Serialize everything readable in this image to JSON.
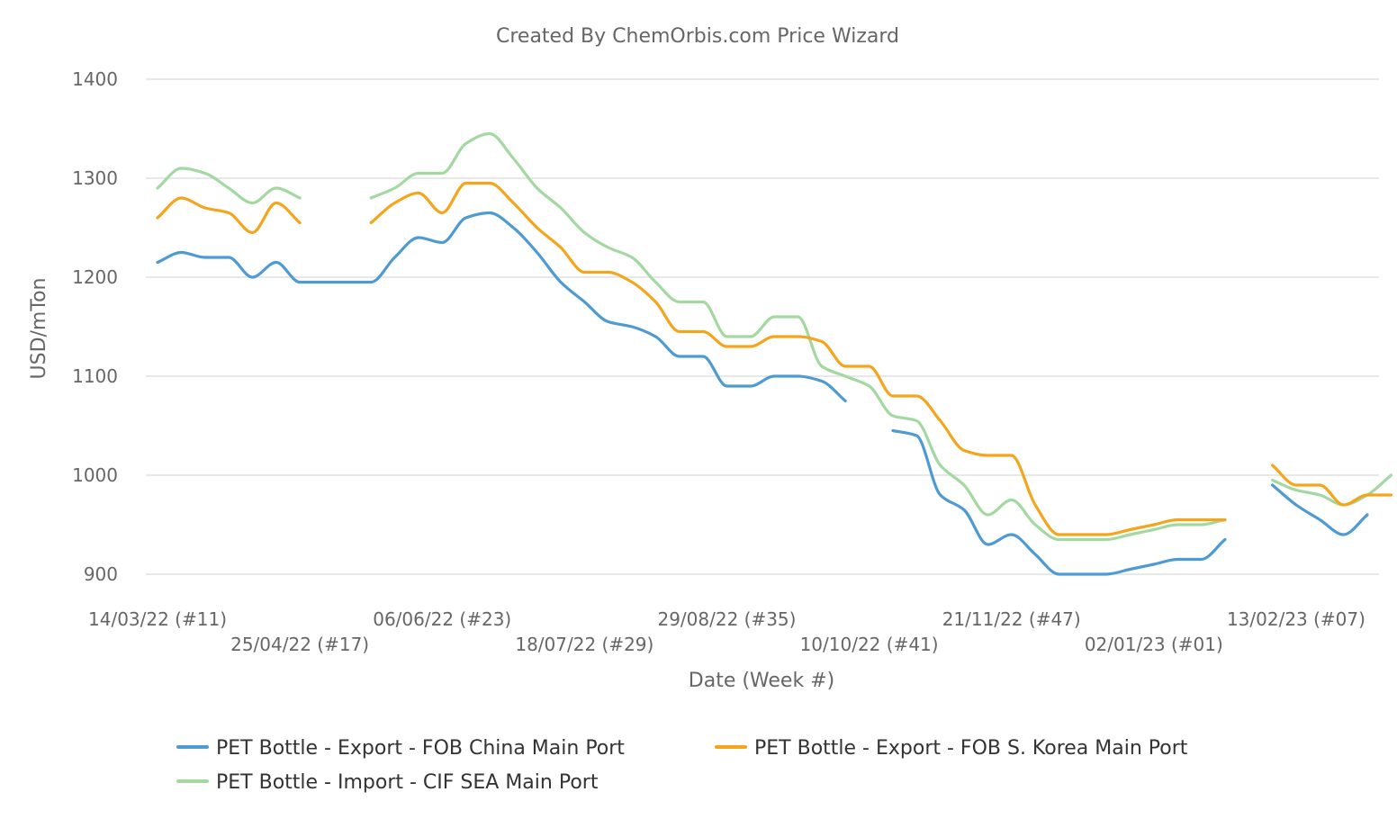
{
  "chart_data": {
    "type": "line",
    "title": "Created By ChemOrbis.com Price Wizard",
    "xlabel": "Date (Week #)",
    "ylabel": "USD/mTon",
    "ylim": [
      900,
      1400
    ],
    "yticks": [
      900,
      1000,
      1100,
      1200,
      1300,
      1400
    ],
    "grid": true,
    "legend_position": "bottom",
    "x_range": [
      "2022-03-14",
      "2023-03-06"
    ],
    "x_ticks": [
      {
        "date": "2022-03-14",
        "label": "14/03/22 (#11)"
      },
      {
        "date": "2022-04-25",
        "label": "25/04/22 (#17)"
      },
      {
        "date": "2022-06-06",
        "label": "06/06/22 (#23)"
      },
      {
        "date": "2022-07-18",
        "label": "18/07/22 (#29)"
      },
      {
        "date": "2022-08-29",
        "label": "29/08/22 (#35)"
      },
      {
        "date": "2022-10-10",
        "label": "10/10/22 (#41)"
      },
      {
        "date": "2022-11-21",
        "label": "21/11/22 (#47)"
      },
      {
        "date": "2023-01-02",
        "label": "02/01/23 (#01)"
      },
      {
        "date": "2023-02-13",
        "label": "13/02/23 (#07)"
      }
    ],
    "series": [
      {
        "name": "PET Bottle - Export - FOB China Main Port",
        "color": "#4e9ad2",
        "points": [
          {
            "x": "2022-03-14",
            "y": 1215
          },
          {
            "x": "2022-03-21",
            "y": 1225
          },
          {
            "x": "2022-03-28",
            "y": 1220
          },
          {
            "x": "2022-04-04",
            "y": 1220
          },
          {
            "x": "2022-04-11",
            "y": 1200
          },
          {
            "x": "2022-04-18",
            "y": 1215
          },
          {
            "x": "2022-04-25",
            "y": 1195
          },
          {
            "x": "2022-05-02",
            "y": 1195
          },
          {
            "x": "2022-05-09",
            "y": 1195
          },
          {
            "x": "2022-05-16",
            "y": 1195
          },
          {
            "x": "2022-05-23",
            "y": 1220
          },
          {
            "x": "2022-05-30",
            "y": 1240
          },
          {
            "x": "2022-06-06",
            "y": 1235
          },
          {
            "x": "2022-06-13",
            "y": 1260
          },
          {
            "x": "2022-06-20",
            "y": 1265
          },
          {
            "x": "2022-06-27",
            "y": 1250
          },
          {
            "x": "2022-07-04",
            "y": 1225
          },
          {
            "x": "2022-07-11",
            "y": 1195
          },
          {
            "x": "2022-07-18",
            "y": 1175
          },
          {
            "x": "2022-07-25",
            "y": 1155
          },
          {
            "x": "2022-08-01",
            "y": 1150
          },
          {
            "x": "2022-08-08",
            "y": 1140
          },
          {
            "x": "2022-08-15",
            "y": 1120
          },
          {
            "x": "2022-08-22",
            "y": 1120
          },
          {
            "x": "2022-08-29",
            "y": 1090
          },
          {
            "x": "2022-09-05",
            "y": 1090
          },
          {
            "x": "2022-09-12",
            "y": 1100
          },
          {
            "x": "2022-09-19",
            "y": 1100
          },
          {
            "x": "2022-09-26",
            "y": 1095
          },
          {
            "x": "2022-10-03",
            "y": 1075
          },
          {
            "x": "2022-10-10",
            "y": null
          },
          {
            "x": "2022-10-17",
            "y": 1045
          },
          {
            "x": "2022-10-24",
            "y": 1040
          },
          {
            "x": "2022-10-31",
            "y": 980
          },
          {
            "x": "2022-11-07",
            "y": 965
          },
          {
            "x": "2022-11-14",
            "y": 930
          },
          {
            "x": "2022-11-21",
            "y": 940
          },
          {
            "x": "2022-11-28",
            "y": 920
          },
          {
            "x": "2022-12-05",
            "y": 900
          },
          {
            "x": "2022-12-12",
            "y": 900
          },
          {
            "x": "2022-12-19",
            "y": 900
          },
          {
            "x": "2022-12-26",
            "y": 905
          },
          {
            "x": "2023-01-02",
            "y": 910
          },
          {
            "x": "2023-01-09",
            "y": 915
          },
          {
            "x": "2023-01-16",
            "y": 915
          },
          {
            "x": "2023-01-23",
            "y": 935
          },
          {
            "x": "2023-01-30",
            "y": null
          },
          {
            "x": "2023-02-06",
            "y": 990
          },
          {
            "x": "2023-02-13",
            "y": 970
          },
          {
            "x": "2023-02-20",
            "y": 955
          },
          {
            "x": "2023-02-27",
            "y": 940
          },
          {
            "x": "2023-03-06",
            "y": 960
          }
        ]
      },
      {
        "name": "PET Bottle - Export - FOB S. Korea Main Port",
        "color": "#f5a51c",
        "points": [
          {
            "x": "2022-03-14",
            "y": 1260
          },
          {
            "x": "2022-03-21",
            "y": 1280
          },
          {
            "x": "2022-03-28",
            "y": 1270
          },
          {
            "x": "2022-04-04",
            "y": 1265
          },
          {
            "x": "2022-04-11",
            "y": 1245
          },
          {
            "x": "2022-04-18",
            "y": 1275
          },
          {
            "x": "2022-04-25",
            "y": 1255
          },
          {
            "x": "2022-05-02",
            "y": null
          },
          {
            "x": "2022-05-16",
            "y": 1255
          },
          {
            "x": "2022-05-23",
            "y": 1275
          },
          {
            "x": "2022-05-30",
            "y": 1285
          },
          {
            "x": "2022-06-06",
            "y": 1265
          },
          {
            "x": "2022-06-13",
            "y": 1295
          },
          {
            "x": "2022-06-20",
            "y": 1295
          },
          {
            "x": "2022-06-27",
            "y": 1275
          },
          {
            "x": "2022-07-04",
            "y": 1250
          },
          {
            "x": "2022-07-11",
            "y": 1230
          },
          {
            "x": "2022-07-18",
            "y": 1205
          },
          {
            "x": "2022-07-25",
            "y": 1205
          },
          {
            "x": "2022-08-01",
            "y": 1195
          },
          {
            "x": "2022-08-08",
            "y": 1175
          },
          {
            "x": "2022-08-15",
            "y": 1145
          },
          {
            "x": "2022-08-22",
            "y": 1145
          },
          {
            "x": "2022-08-29",
            "y": 1130
          },
          {
            "x": "2022-09-05",
            "y": 1130
          },
          {
            "x": "2022-09-12",
            "y": 1140
          },
          {
            "x": "2022-09-19",
            "y": 1140
          },
          {
            "x": "2022-09-26",
            "y": 1135
          },
          {
            "x": "2022-10-03",
            "y": 1110
          },
          {
            "x": "2022-10-10",
            "y": 1110
          },
          {
            "x": "2022-10-17",
            "y": 1080
          },
          {
            "x": "2022-10-24",
            "y": 1080
          },
          {
            "x": "2022-10-31",
            "y": 1055
          },
          {
            "x": "2022-11-07",
            "y": 1025
          },
          {
            "x": "2022-11-14",
            "y": 1020
          },
          {
            "x": "2022-11-21",
            "y": 1020
          },
          {
            "x": "2022-11-28",
            "y": 970
          },
          {
            "x": "2022-12-05",
            "y": 940
          },
          {
            "x": "2022-12-12",
            "y": 940
          },
          {
            "x": "2022-12-19",
            "y": 940
          },
          {
            "x": "2022-12-26",
            "y": 945
          },
          {
            "x": "2023-01-02",
            "y": 950
          },
          {
            "x": "2023-01-09",
            "y": 955
          },
          {
            "x": "2023-01-16",
            "y": 955
          },
          {
            "x": "2023-01-23",
            "y": 955
          },
          {
            "x": "2023-01-30",
            "y": null
          },
          {
            "x": "2023-02-06",
            "y": 1010
          },
          {
            "x": "2023-02-13",
            "y": 990
          },
          {
            "x": "2023-02-20",
            "y": 990
          },
          {
            "x": "2023-02-27",
            "y": 970
          },
          {
            "x": "2023-03-06",
            "y": 980
          },
          {
            "x": "2023-03-13",
            "y": 980
          }
        ]
      },
      {
        "name": "PET Bottle - Import - CIF SEA Main Port",
        "color": "#a3d9a0",
        "points": [
          {
            "x": "2022-03-14",
            "y": 1290
          },
          {
            "x": "2022-03-21",
            "y": 1310
          },
          {
            "x": "2022-03-28",
            "y": 1305
          },
          {
            "x": "2022-04-04",
            "y": 1290
          },
          {
            "x": "2022-04-11",
            "y": 1275
          },
          {
            "x": "2022-04-18",
            "y": 1290
          },
          {
            "x": "2022-04-25",
            "y": 1280
          },
          {
            "x": "2022-05-02",
            "y": null
          },
          {
            "x": "2022-05-16",
            "y": 1280
          },
          {
            "x": "2022-05-23",
            "y": 1290
          },
          {
            "x": "2022-05-30",
            "y": 1305
          },
          {
            "x": "2022-06-06",
            "y": 1305
          },
          {
            "x": "2022-06-13",
            "y": 1335
          },
          {
            "x": "2022-06-20",
            "y": 1345
          },
          {
            "x": "2022-06-27",
            "y": 1320
          },
          {
            "x": "2022-07-04",
            "y": 1290
          },
          {
            "x": "2022-07-11",
            "y": 1270
          },
          {
            "x": "2022-07-18",
            "y": 1245
          },
          {
            "x": "2022-07-25",
            "y": 1230
          },
          {
            "x": "2022-08-01",
            "y": 1220
          },
          {
            "x": "2022-08-08",
            "y": 1195
          },
          {
            "x": "2022-08-15",
            "y": 1175
          },
          {
            "x": "2022-08-22",
            "y": 1175
          },
          {
            "x": "2022-08-29",
            "y": 1140
          },
          {
            "x": "2022-09-05",
            "y": 1140
          },
          {
            "x": "2022-09-12",
            "y": 1160
          },
          {
            "x": "2022-09-19",
            "y": 1160
          },
          {
            "x": "2022-09-26",
            "y": 1110
          },
          {
            "x": "2022-10-03",
            "y": 1100
          },
          {
            "x": "2022-10-10",
            "y": 1090
          },
          {
            "x": "2022-10-17",
            "y": 1060
          },
          {
            "x": "2022-10-24",
            "y": 1055
          },
          {
            "x": "2022-10-31",
            "y": 1010
          },
          {
            "x": "2022-11-07",
            "y": 990
          },
          {
            "x": "2022-11-14",
            "y": 960
          },
          {
            "x": "2022-11-21",
            "y": 975
          },
          {
            "x": "2022-11-28",
            "y": 950
          },
          {
            "x": "2022-12-05",
            "y": 935
          },
          {
            "x": "2022-12-12",
            "y": 935
          },
          {
            "x": "2022-12-19",
            "y": 935
          },
          {
            "x": "2022-12-26",
            "y": 940
          },
          {
            "x": "2023-01-02",
            "y": 945
          },
          {
            "x": "2023-01-09",
            "y": 950
          },
          {
            "x": "2023-01-16",
            "y": 950
          },
          {
            "x": "2023-01-23",
            "y": 955
          },
          {
            "x": "2023-01-30",
            "y": null
          },
          {
            "x": "2023-02-06",
            "y": 995
          },
          {
            "x": "2023-02-13",
            "y": 985
          },
          {
            "x": "2023-02-20",
            "y": 980
          },
          {
            "x": "2023-02-27",
            "y": 970
          },
          {
            "x": "2023-03-06",
            "y": 980
          },
          {
            "x": "2023-03-13",
            "y": 1000
          }
        ]
      }
    ]
  }
}
